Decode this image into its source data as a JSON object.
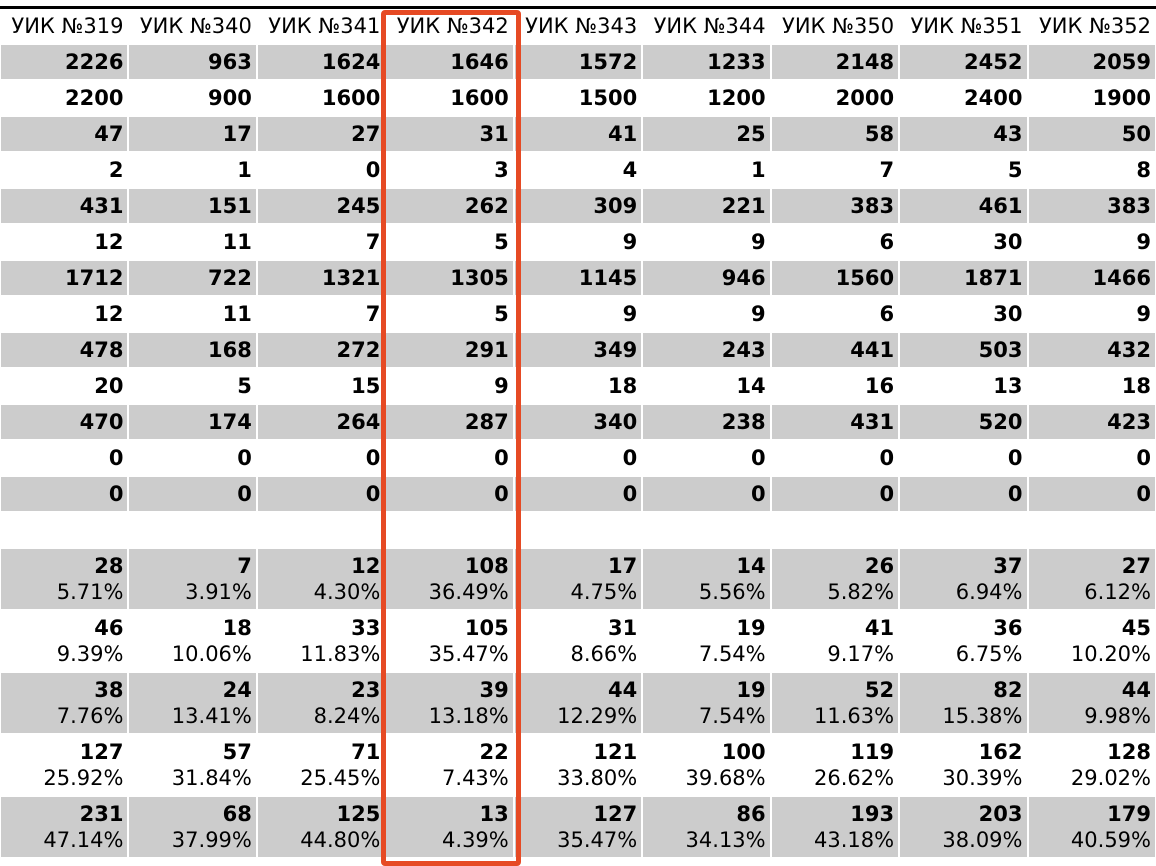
{
  "table": {
    "columns": [
      "УИК №319",
      "УИК №340",
      "УИК №341",
      "УИК №342",
      "УИК №343",
      "УИК №344",
      "УИК №350",
      "УИК №351",
      "УИК №352"
    ],
    "rows": [
      [
        2226,
        963,
        1624,
        1646,
        1572,
        1233,
        2148,
        2452,
        2059
      ],
      [
        2200,
        900,
        1600,
        1600,
        1500,
        1200,
        2000,
        2400,
        1900
      ],
      [
        47,
        17,
        27,
        31,
        41,
        25,
        58,
        43,
        50
      ],
      [
        2,
        1,
        0,
        3,
        4,
        1,
        7,
        5,
        8
      ],
      [
        431,
        151,
        245,
        262,
        309,
        221,
        383,
        461,
        383
      ],
      [
        12,
        11,
        7,
        5,
        9,
        9,
        6,
        30,
        9
      ],
      [
        1712,
        722,
        1321,
        1305,
        1145,
        946,
        1560,
        1871,
        1466
      ],
      [
        12,
        11,
        7,
        5,
        9,
        9,
        6,
        30,
        9
      ],
      [
        478,
        168,
        272,
        291,
        349,
        243,
        441,
        503,
        432
      ],
      [
        20,
        5,
        15,
        9,
        18,
        14,
        16,
        13,
        18
      ],
      [
        470,
        174,
        264,
        287,
        340,
        238,
        431,
        520,
        423
      ],
      [
        0,
        0,
        0,
        0,
        0,
        0,
        0,
        0,
        0
      ],
      [
        0,
        0,
        0,
        0,
        0,
        0,
        0,
        0,
        0
      ]
    ],
    "share_rows": [
      [
        {
          "count": 28,
          "percent": "5.71%"
        },
        {
          "count": 7,
          "percent": "3.91%"
        },
        {
          "count": 12,
          "percent": "4.30%"
        },
        {
          "count": 108,
          "percent": "36.49%"
        },
        {
          "count": 17,
          "percent": "4.75%"
        },
        {
          "count": 14,
          "percent": "5.56%"
        },
        {
          "count": 26,
          "percent": "5.82%"
        },
        {
          "count": 37,
          "percent": "6.94%"
        },
        {
          "count": 27,
          "percent": "6.12%"
        }
      ],
      [
        {
          "count": 46,
          "percent": "9.39%"
        },
        {
          "count": 18,
          "percent": "10.06%"
        },
        {
          "count": 33,
          "percent": "11.83%"
        },
        {
          "count": 105,
          "percent": "35.47%"
        },
        {
          "count": 31,
          "percent": "8.66%"
        },
        {
          "count": 19,
          "percent": "7.54%"
        },
        {
          "count": 41,
          "percent": "9.17%"
        },
        {
          "count": 36,
          "percent": "6.75%"
        },
        {
          "count": 45,
          "percent": "10.20%"
        }
      ],
      [
        {
          "count": 38,
          "percent": "7.76%"
        },
        {
          "count": 24,
          "percent": "13.41%"
        },
        {
          "count": 23,
          "percent": "8.24%"
        },
        {
          "count": 39,
          "percent": "13.18%"
        },
        {
          "count": 44,
          "percent": "12.29%"
        },
        {
          "count": 19,
          "percent": "7.54%"
        },
        {
          "count": 52,
          "percent": "11.63%"
        },
        {
          "count": 82,
          "percent": "15.38%"
        },
        {
          "count": 44,
          "percent": "9.98%"
        }
      ],
      [
        {
          "count": 127,
          "percent": "25.92%"
        },
        {
          "count": 57,
          "percent": "31.84%"
        },
        {
          "count": 71,
          "percent": "25.45%"
        },
        {
          "count": 22,
          "percent": "7.43%"
        },
        {
          "count": 121,
          "percent": "33.80%"
        },
        {
          "count": 100,
          "percent": "39.68%"
        },
        {
          "count": 119,
          "percent": "26.62%"
        },
        {
          "count": 162,
          "percent": "30.39%"
        },
        {
          "count": 128,
          "percent": "29.02%"
        }
      ],
      [
        {
          "count": 231,
          "percent": "47.14%"
        },
        {
          "count": 68,
          "percent": "37.99%"
        },
        {
          "count": 125,
          "percent": "44.80%"
        },
        {
          "count": 13,
          "percent": "4.39%"
        },
        {
          "count": 127,
          "percent": "35.47%"
        },
        {
          "count": 86,
          "percent": "34.13%"
        },
        {
          "count": 193,
          "percent": "43.18%"
        },
        {
          "count": 203,
          "percent": "38.09%"
        },
        {
          "count": 179,
          "percent": "40.59%"
        }
      ]
    ]
  }
}
